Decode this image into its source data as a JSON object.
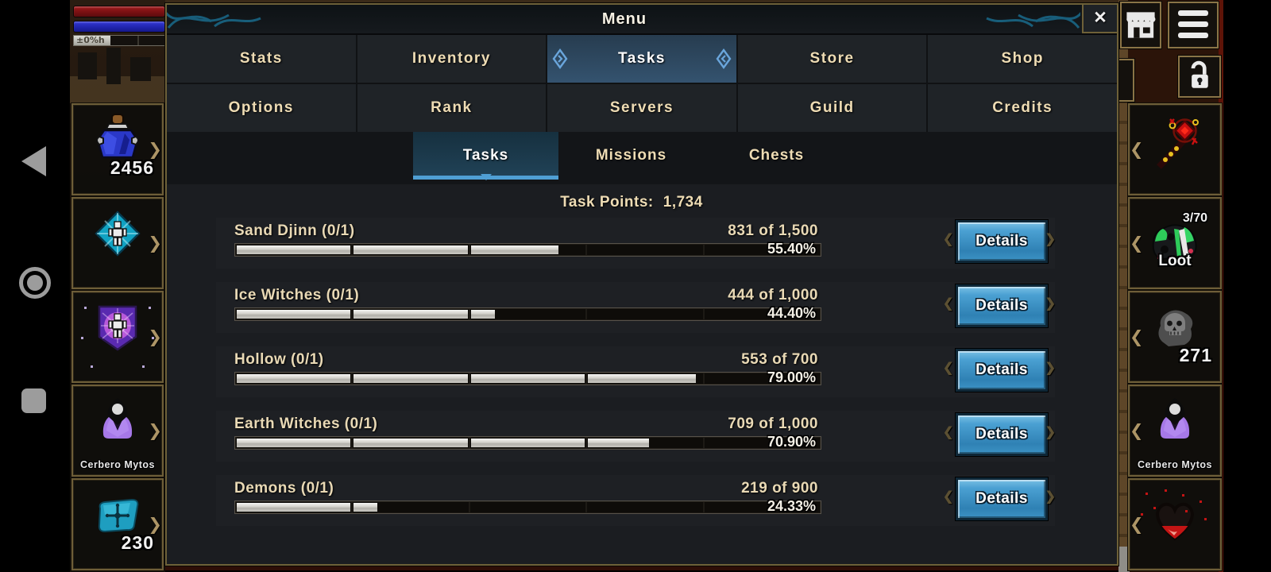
{
  "title_bar": {
    "title": "Menu",
    "close": "✕"
  },
  "main_tabs": {
    "rows": [
      [
        "Stats",
        "Inventory",
        "Tasks",
        "Store",
        "Shop"
      ],
      [
        "Options",
        "Rank",
        "Servers",
        "Guild",
        "Credits"
      ]
    ],
    "selected": "Tasks"
  },
  "sub_tabs": {
    "items": [
      "Tasks",
      "Missions",
      "Chests"
    ],
    "selected": "Tasks"
  },
  "task_points": {
    "label": "Task Points:",
    "value": "1,734"
  },
  "details_label": "Details",
  "tasks": [
    {
      "name": "Sand Djinn (0/1)",
      "progress": "831 of 1,500",
      "percent": 55.4,
      "percent_label": "55.40%"
    },
    {
      "name": "Ice Witches (0/1)",
      "progress": "444 of 1,000",
      "percent": 44.4,
      "percent_label": "44.40%"
    },
    {
      "name": "Hollow (0/1)",
      "progress": "553 of 700",
      "percent": 79.0,
      "percent_label": "79.00%"
    },
    {
      "name": "Earth Witches (0/1)",
      "progress": "709 of 1,000",
      "percent": 70.9,
      "percent_label": "70.90%"
    },
    {
      "name": "Demons (0/1)",
      "progress": "219 of 900",
      "percent": 24.33,
      "percent_label": "24.33%"
    }
  ],
  "hud_left": {
    "xp_label": "±0%h",
    "slots": [
      {
        "icon": "mana-potion-icon",
        "count": "2456"
      },
      {
        "icon": "frost-buff-icon"
      },
      {
        "icon": "arcane-buff-icon"
      },
      {
        "icon": "pet-icon",
        "label": "Cerbero Mytos"
      },
      {
        "icon": "rune-gem-icon",
        "count": "230"
      }
    ]
  },
  "hud_right": {
    "slots": [
      {
        "icon": "staff-weapon-icon"
      },
      {
        "icon": "loot-bag-icon",
        "count": "3/70",
        "label": "Loot"
      },
      {
        "icon": "skull-icon",
        "count": "271"
      },
      {
        "icon": "pet-icon",
        "label": "Cerbero Mytos"
      },
      {
        "icon": "heart-icon"
      }
    ]
  },
  "colors": {
    "accent_blue": "#4f9fd4",
    "tab_text_cream": "#eedcb4",
    "details_button_blue": "#3f94c8",
    "health_red": "#8e1416",
    "mana_blue": "#2429b8"
  }
}
